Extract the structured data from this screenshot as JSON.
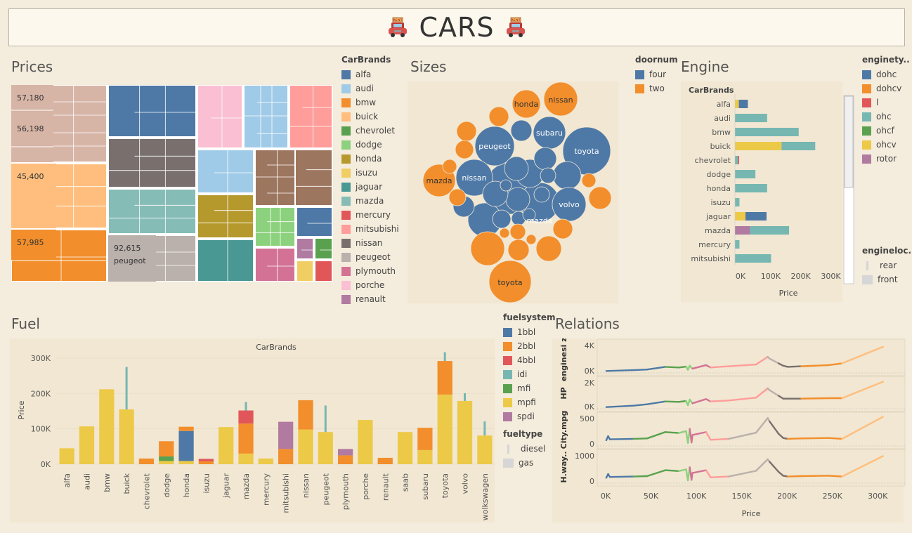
{
  "header": {
    "title": "CARS"
  },
  "sections": {
    "prices": "Prices",
    "sizes": "Sizes",
    "engine": "Engine",
    "fuel": "Fuel",
    "relations": "Relations"
  },
  "palette": {
    "alfa": "#4e79a7",
    "audi": "#a0cbe8",
    "bmw": "#f28e2b",
    "buick": "#ffbe7d",
    "chevrolet": "#59a14f",
    "dodge": "#8cd17d",
    "honda": "#b6992d",
    "isuzu": "#f1ce63",
    "jaguar": "#499894",
    "mazda": "#86bcb6",
    "mercury": "#e15759",
    "mitsubishi": "#ff9d9a",
    "nissan": "#79706e",
    "peugeot": "#bab0ac",
    "plymouth": "#d37295",
    "porche": "#fabfd2",
    "renault": "#b07aa1",
    "saab": "#d4a6c8",
    "subaru": "#9d7660",
    "toyota": "#d7b5a6"
  },
  "prices_legend": {
    "title": "CarBrands",
    "items": [
      "alfa",
      "audi",
      "bmw",
      "buick",
      "chevrolet",
      "dodge",
      "honda",
      "isuzu",
      "jaguar",
      "mazda",
      "mercury",
      "mitsubishi",
      "nissan",
      "peugeot",
      "plymouth",
      "porche",
      "renault"
    ]
  },
  "treemap_labels": [
    {
      "brand": "toyota",
      "text": "57,180"
    },
    {
      "brand": "toyota",
      "text": "56,198"
    },
    {
      "brand": "buick",
      "text": "45,400"
    },
    {
      "brand": "bmw",
      "text": "57,985"
    },
    {
      "brand": "peugeot",
      "text": "92,615"
    },
    {
      "brand": "peugeot",
      "text": "peugeot"
    }
  ],
  "sizes_legend": {
    "title": "doornum",
    "items": [
      {
        "label": "four",
        "color": "#4e79a7"
      },
      {
        "label": "two",
        "color": "#f28e2b"
      }
    ]
  },
  "bubble_labels": [
    "honda",
    "nissan",
    "peugeot",
    "subaru",
    "toyota",
    "mazda",
    "nissan",
    "volvo",
    "mazda",
    "toyota"
  ],
  "engine_legend": {
    "title": "enginety..",
    "items": [
      {
        "label": "dohc",
        "color": "#4e79a7"
      },
      {
        "label": "dohcv",
        "color": "#f28e2b"
      },
      {
        "label": "l",
        "color": "#e15759"
      },
      {
        "label": "ohc",
        "color": "#76b7b2"
      },
      {
        "label": "ohcf",
        "color": "#59a14f"
      },
      {
        "label": "ohcv",
        "color": "#edc948"
      },
      {
        "label": "rotor",
        "color": "#b07aa1"
      }
    ]
  },
  "engineloc_legend": {
    "title": "engineloc..",
    "items": [
      {
        "label": "rear",
        "color": "#d6d6d6"
      },
      {
        "label": "front",
        "color": "#d6d6d6"
      }
    ]
  },
  "fuel_legend": {
    "title": "fuelsystem",
    "items": [
      {
        "label": "1bbl",
        "color": "#4e79a7"
      },
      {
        "label": "2bbl",
        "color": "#f28e2b"
      },
      {
        "label": "4bbl",
        "color": "#e15759"
      },
      {
        "label": "idi",
        "color": "#76b7b2"
      },
      {
        "label": "mfi",
        "color": "#59a14f"
      },
      {
        "label": "mpfi",
        "color": "#edc948"
      },
      {
        "label": "spdi",
        "color": "#b07aa1"
      }
    ]
  },
  "fueltype_legend": {
    "title": "fueltype",
    "items": [
      {
        "label": "diesel",
        "color": "#d6d6d6"
      },
      {
        "label": "gas",
        "color": "#d6d6d6"
      }
    ]
  },
  "chart_data": [
    {
      "type": "bar",
      "orientation": "horizontal",
      "name": "Engine",
      "header_label": "CarBrands",
      "xlabel": "Price",
      "xlim": [
        0,
        320000
      ],
      "xticks": [
        "0K",
        "100K",
        "200K",
        "300K"
      ],
      "categories": [
        "alfa",
        "audi",
        "bmw",
        "buick",
        "chevrolet",
        "dodge",
        "honda",
        "isuzu",
        "jaguar",
        "mazda",
        "mercury",
        "mitsubishi"
      ],
      "series": [
        {
          "name": "ohcv",
          "values": [
            13000,
            0,
            0,
            155000,
            0,
            0,
            0,
            0,
            35000,
            0,
            0,
            0
          ]
        },
        {
          "name": "rotor",
          "values": [
            0,
            0,
            0,
            0,
            0,
            0,
            0,
            0,
            0,
            50000,
            0,
            0
          ]
        },
        {
          "name": "dohc",
          "values": [
            30000,
            0,
            0,
            0,
            0,
            0,
            0,
            0,
            70000,
            0,
            0,
            0
          ]
        },
        {
          "name": "ohc",
          "values": [
            0,
            107000,
            212000,
            112000,
            10000,
            68000,
            107000,
            15000,
            0,
            130000,
            15000,
            120000
          ]
        },
        {
          "name": "l",
          "values": [
            0,
            0,
            0,
            0,
            4000,
            0,
            0,
            0,
            0,
            0,
            0,
            0
          ]
        }
      ]
    },
    {
      "type": "bar",
      "stacked": true,
      "name": "Fuel",
      "title": "CarBrands",
      "ylabel": "Price",
      "ylim": [
        0,
        320000
      ],
      "yticks": [
        "0K",
        "100K",
        "200K",
        "300K"
      ],
      "categories": [
        "alfa",
        "audi",
        "bmw",
        "buick",
        "chevrolet",
        "dodge",
        "honda",
        "isuzu",
        "jaguar",
        "mazda",
        "mercury",
        "mitsubishi",
        "nissan",
        "peugeot",
        "plymouth",
        "porche",
        "renault",
        "saab",
        "subaru",
        "toyota",
        "volvo",
        "wolkswagen"
      ],
      "series": [
        {
          "name": "mpfi",
          "values": [
            45000,
            107000,
            212000,
            155000,
            0,
            9000,
            9000,
            0,
            105000,
            30000,
            16000,
            0,
            98000,
            91000,
            0,
            125000,
            0,
            91000,
            40000,
            197000,
            179000,
            81000
          ]
        },
        {
          "name": "mfi",
          "values": [
            0,
            0,
            0,
            0,
            0,
            13000,
            0,
            0,
            0,
            0,
            0,
            0,
            0,
            0,
            0,
            0,
            0,
            0,
            0,
            0,
            0,
            0
          ]
        },
        {
          "name": "1bbl",
          "values": [
            0,
            0,
            0,
            0,
            0,
            0,
            85000,
            0,
            0,
            0,
            0,
            0,
            0,
            0,
            0,
            0,
            0,
            0,
            0,
            0,
            0,
            0
          ]
        },
        {
          "name": "2bbl",
          "values": [
            0,
            0,
            0,
            0,
            16000,
            43000,
            12000,
            8000,
            0,
            85000,
            0,
            43000,
            83000,
            0,
            25000,
            0,
            18000,
            0,
            63000,
            95000,
            0,
            0
          ]
        },
        {
          "name": "4bbl",
          "values": [
            0,
            0,
            0,
            0,
            0,
            0,
            0,
            7000,
            0,
            37000,
            0,
            0,
            0,
            0,
            0,
            0,
            0,
            0,
            0,
            0,
            0,
            0
          ]
        },
        {
          "name": "spdi",
          "values": [
            0,
            0,
            0,
            0,
            0,
            0,
            0,
            0,
            0,
            0,
            0,
            77000,
            0,
            0,
            18000,
            0,
            0,
            0,
            0,
            0,
            0,
            0
          ]
        },
        {
          "name": "idi",
          "values": [
            0,
            0,
            0,
            120000,
            0,
            0,
            0,
            0,
            0,
            24000,
            0,
            0,
            0,
            75000,
            0,
            0,
            0,
            0,
            0,
            25000,
            22000,
            40000
          ]
        }
      ]
    },
    {
      "type": "line",
      "name": "Relations",
      "xlabel": "Price",
      "xlim": [
        0,
        330000
      ],
      "xticks": [
        "0K",
        "50K",
        "100K",
        "150K",
        "200K",
        "250K",
        "300K"
      ],
      "panels": [
        {
          "ylabel": "enginesi ze",
          "yticks": [
            "4K",
            "0K"
          ],
          "ylim": [
            0,
            5000
          ],
          "x": [
            10000,
            40000,
            55000,
            75000,
            90000,
            98000,
            100000,
            102000,
            105000,
            120000,
            125000,
            145000,
            175000,
            188000,
            190000,
            200000,
            205000,
            210000,
            225000,
            255000,
            270000,
            315000
          ],
          "y": [
            200,
            350,
            450,
            900,
            800,
            950,
            400,
            1100,
            600,
            1200,
            800,
            1000,
            1300,
            2600,
            2300,
            1500,
            1100,
            900,
            1000,
            1200,
            1500,
            4300
          ]
        },
        {
          "ylabel": "HP",
          "yticks": [
            "2K",
            "0K"
          ],
          "ylim": [
            0,
            3000
          ],
          "x": [
            10000,
            40000,
            55000,
            75000,
            90000,
            98000,
            100000,
            102000,
            105000,
            120000,
            125000,
            145000,
            175000,
            188000,
            190000,
            200000,
            205000,
            210000,
            225000,
            255000,
            270000,
            315000
          ],
          "y": [
            100,
            250,
            400,
            700,
            650,
            750,
            300,
            900,
            500,
            950,
            700,
            800,
            1100,
            2100,
            1900,
            1300,
            1000,
            1000,
            1000,
            1050,
            1050,
            2800
          ]
        },
        {
          "ylabel": "City.mpg",
          "yticks": [
            "500",
            "0"
          ],
          "ylim": [
            -200,
            1100
          ],
          "x": [
            10000,
            12000,
            14000,
            40000,
            55000,
            75000,
            90000,
            98000,
            100000,
            102000,
            104000,
            105000,
            120000,
            125000,
            145000,
            175000,
            188000,
            190000,
            200000,
            205000,
            210000,
            225000,
            255000,
            270000,
            315000
          ],
          "y": [
            20,
            200,
            60,
            80,
            100,
            380,
            340,
            420,
            -100,
            520,
            -80,
            250,
            380,
            40,
            80,
            350,
            1000,
            850,
            300,
            120,
            80,
            100,
            120,
            80,
            1050
          ]
        },
        {
          "ylabel": "H.way..",
          "yticks": [
            "1000",
            "0"
          ],
          "ylim": [
            -200,
            1200
          ],
          "x": [
            10000,
            12000,
            14000,
            40000,
            55000,
            75000,
            90000,
            98000,
            100000,
            102000,
            104000,
            105000,
            120000,
            125000,
            145000,
            175000,
            188000,
            190000,
            200000,
            205000,
            210000,
            225000,
            255000,
            270000,
            315000
          ],
          "y": [
            20,
            200,
            60,
            80,
            100,
            380,
            340,
            420,
            -100,
            520,
            -80,
            250,
            380,
            40,
            80,
            350,
            900,
            780,
            300,
            120,
            80,
            100,
            120,
            80,
            1050
          ]
        }
      ]
    }
  ]
}
